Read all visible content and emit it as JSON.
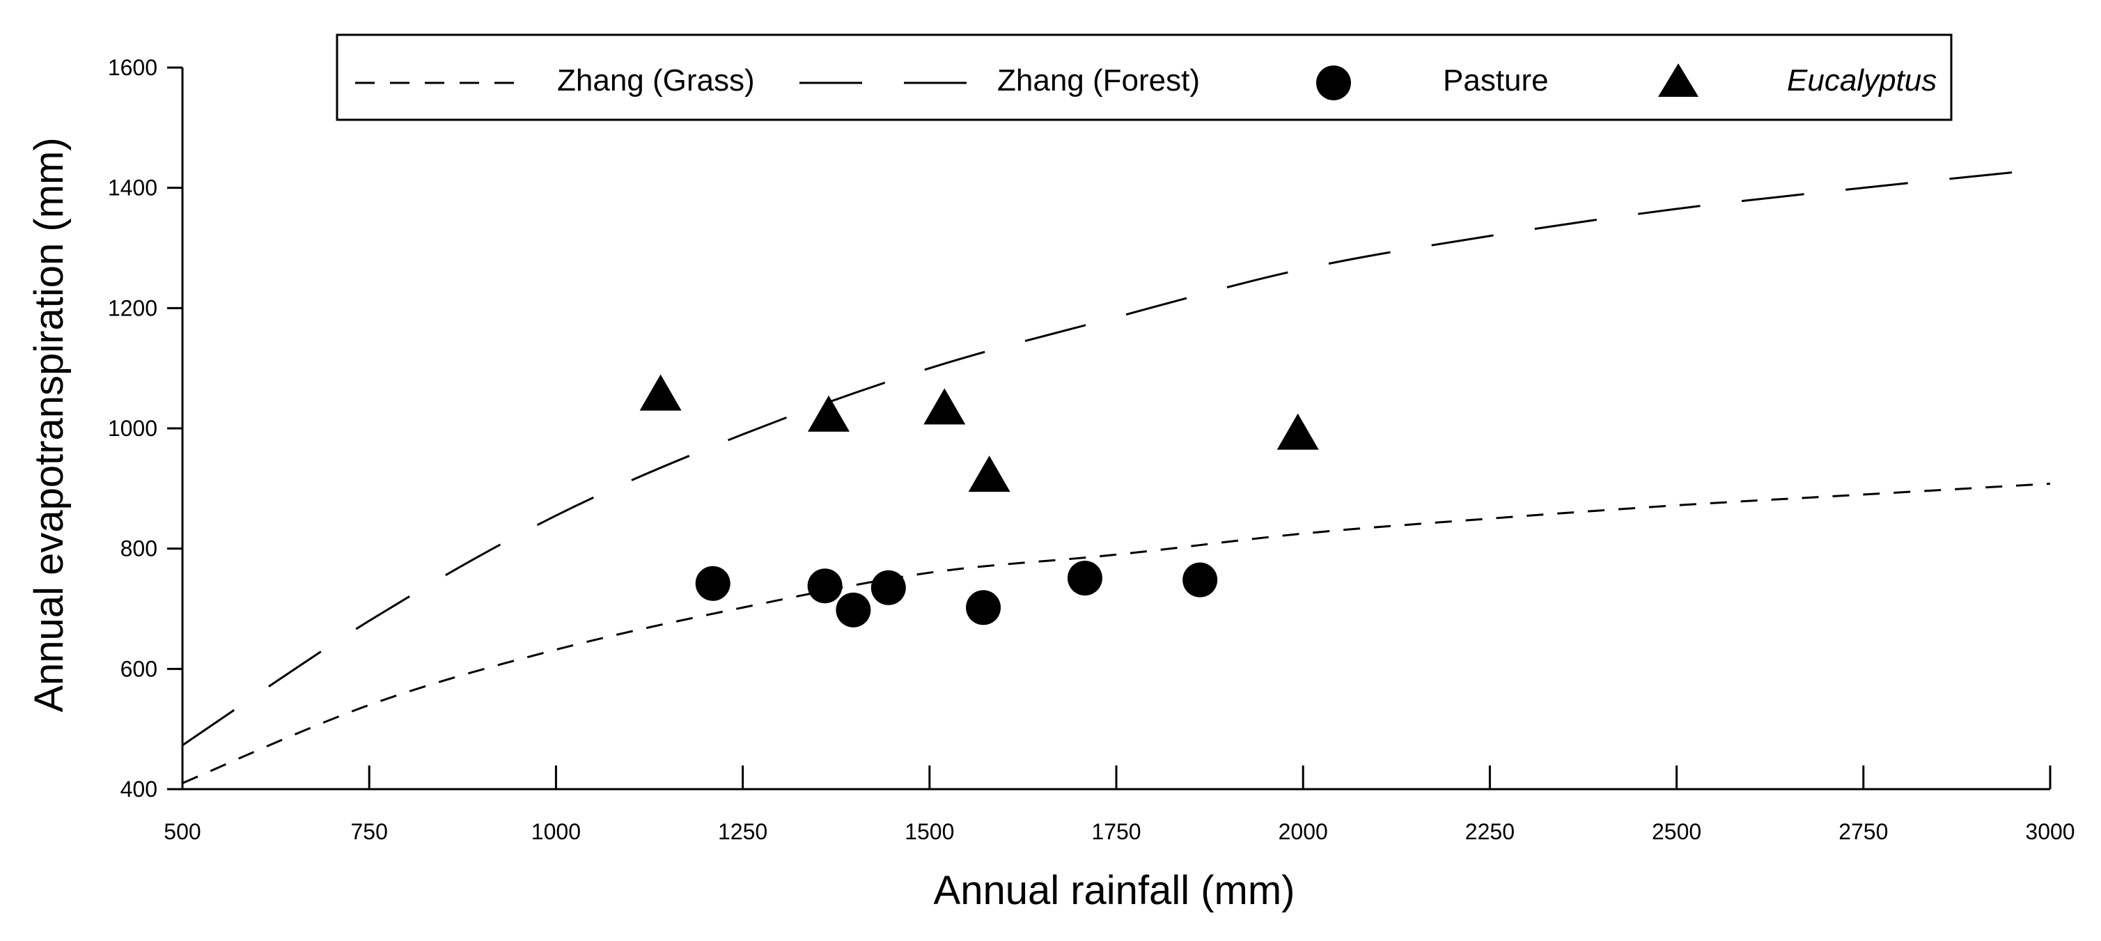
{
  "chart_data": {
    "type": "scatter",
    "title": "",
    "xlabel": "Annual rainfall (mm)",
    "ylabel": "Annual evapotranspiration (mm)",
    "xlim": [
      500,
      3000
    ],
    "ylim": [
      400,
      1600
    ],
    "x_ticks": [
      500,
      750,
      1000,
      1250,
      1500,
      1750,
      2000,
      2250,
      2500,
      2750,
      3000
    ],
    "y_ticks": [
      400,
      600,
      800,
      1000,
      1200,
      1400,
      1600
    ],
    "grid": false,
    "legend_position": "top",
    "legend": {
      "zhang_grass": "Zhang (Grass)",
      "zhang_forest": "Zhang (Forest)",
      "pasture": "Pasture",
      "eucalyptus": "Eucalyptus"
    },
    "series": [
      {
        "name": "Zhang (Grass)",
        "kind": "curve",
        "line_style": "short-dash",
        "points": [
          [
            500,
            410
          ],
          [
            750,
            540
          ],
          [
            1000,
            632
          ],
          [
            1250,
            702
          ],
          [
            1500,
            760
          ],
          [
            1750,
            790
          ],
          [
            2000,
            825
          ],
          [
            2250,
            850
          ],
          [
            2500,
            872
          ],
          [
            2750,
            890
          ],
          [
            3000,
            908
          ]
        ]
      },
      {
        "name": "Zhang (Forest)",
        "kind": "curve",
        "line_style": "long-dash",
        "points": [
          [
            500,
            473
          ],
          [
            750,
            680
          ],
          [
            1000,
            855
          ],
          [
            1250,
            990
          ],
          [
            1500,
            1100
          ],
          [
            1750,
            1185
          ],
          [
            2000,
            1265
          ],
          [
            2250,
            1320
          ],
          [
            2500,
            1365
          ],
          [
            2750,
            1400
          ],
          [
            3000,
            1432
          ]
        ]
      },
      {
        "name": "Pasture",
        "kind": "points",
        "marker": "circle",
        "points": [
          [
            1210,
            742
          ],
          [
            1360,
            738
          ],
          [
            1398,
            698
          ],
          [
            1445,
            735
          ],
          [
            1572,
            702
          ],
          [
            1708,
            751
          ],
          [
            1862,
            748
          ]
        ]
      },
      {
        "name": "Eucalyptus",
        "kind": "points",
        "marker": "triangle",
        "points": [
          [
            1140,
            1055
          ],
          [
            1365,
            1020
          ],
          [
            1520,
            1032
          ],
          [
            1580,
            920
          ],
          [
            1993,
            990
          ]
        ]
      }
    ]
  }
}
